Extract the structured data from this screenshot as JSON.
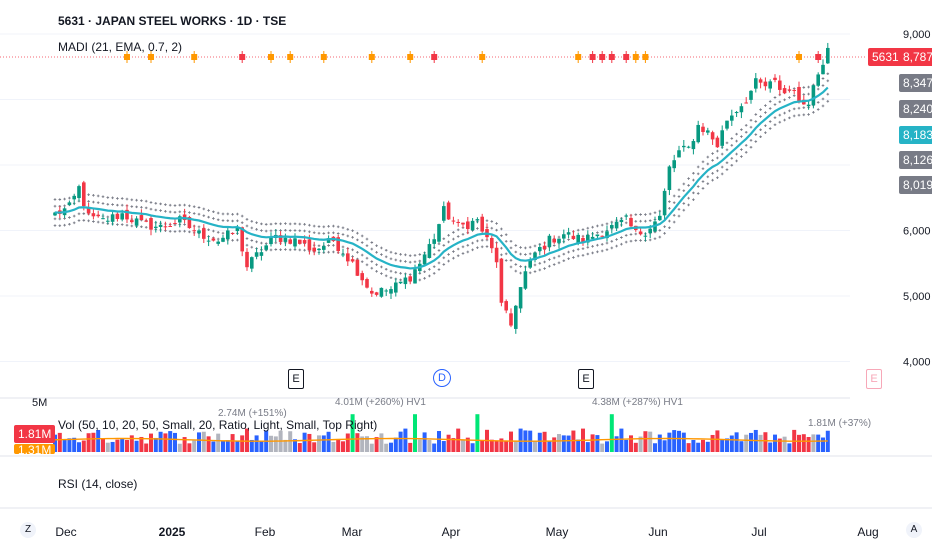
{
  "header": {
    "title": "5631 · JAPAN STEEL WORKS · 1D · TSE",
    "indicator_madi": "MADI (21, EMA, 0.7, 2)",
    "indicator_vol": "Vol (50, 10, 20, 50, Small, 20, Ratio, Light, Small, Top Right)",
    "indicator_rsi": "RSI (14, close)"
  },
  "price_tags": {
    "symbol": "5631",
    "last": "8,787",
    "upper_band2": "8,347",
    "upper_band1": "8,240",
    "ema": "8,183",
    "lower_band1": "8,126",
    "lower_band2": "8,019"
  },
  "volume_tags": {
    "top_axis": "5M",
    "current": "1.81M",
    "avg_partial": "1.31M",
    "ann1": "2.74M (+151%)",
    "ann2": "4.01M (+260%) HV1",
    "ann3": "4.38M (+287%) HV1",
    "ann_last": "1.81M (+37%)"
  },
  "events": {
    "e1": "E",
    "d": "D",
    "e2": "E",
    "e3": "E"
  },
  "corner": {
    "left": "Z",
    "right": "A"
  },
  "colors": {
    "up": "#089981",
    "down": "#f23645",
    "ema": "#26b3c6",
    "band": "#787b86",
    "vol_up": "#2962ff",
    "vol_down": "#f23645",
    "vol_hv": "#00e676",
    "vol_avg": "#ff9800",
    "grid": "#f0f3fa"
  },
  "chart_data": {
    "type": "candlestick",
    "symbol": "5631",
    "timeframe": "1D",
    "y_axis": {
      "ticks": [
        4000,
        5000,
        6000,
        7000,
        8000,
        9000
      ],
      "tick_labels": [
        "4,000",
        "5,000",
        "6,000",
        "",
        "",
        "9,000"
      ],
      "range": [
        3700,
        9100
      ]
    },
    "x_axis": {
      "tick_labels": [
        "Dec",
        "2025",
        "Feb",
        "Mar",
        "Apr",
        "May",
        "Jun",
        "Jul",
        "Aug"
      ]
    },
    "close_anchors": [
      [
        0,
        6250
      ],
      [
        3,
        6350
      ],
      [
        5,
        6650
      ],
      [
        7,
        6200
      ],
      [
        10,
        6150
      ],
      [
        14,
        6250
      ],
      [
        18,
        6100
      ],
      [
        22,
        6050
      ],
      [
        26,
        6150
      ],
      [
        30,
        5950
      ],
      [
        34,
        5850
      ],
      [
        38,
        6000
      ],
      [
        40,
        5450
      ],
      [
        43,
        5700
      ],
      [
        46,
        5900
      ],
      [
        50,
        5850
      ],
      [
        54,
        5700
      ],
      [
        58,
        5850
      ],
      [
        62,
        5500
      ],
      [
        66,
        5050
      ],
      [
        70,
        5100
      ],
      [
        74,
        5300
      ],
      [
        76,
        5500
      ],
      [
        79,
        5900
      ],
      [
        81,
        6300
      ],
      [
        84,
        6050
      ],
      [
        88,
        6150
      ],
      [
        90,
        5850
      ],
      [
        92,
        5550
      ],
      [
        93,
        4850
      ],
      [
        95,
        4550
      ],
      [
        96,
        4900
      ],
      [
        98,
        5350
      ],
      [
        100,
        5650
      ],
      [
        103,
        5850
      ],
      [
        106,
        5950
      ],
      [
        110,
        5850
      ],
      [
        113,
        5950
      ],
      [
        116,
        6050
      ],
      [
        119,
        6150
      ],
      [
        121,
        5950
      ],
      [
        123,
        6000
      ],
      [
        126,
        6200
      ],
      [
        128,
        6950
      ],
      [
        130,
        7200
      ],
      [
        132,
        7250
      ],
      [
        134,
        7600
      ],
      [
        136,
        7500
      ],
      [
        138,
        7300
      ],
      [
        140,
        7700
      ],
      [
        142,
        7850
      ],
      [
        144,
        8000
      ],
      [
        146,
        8250
      ],
      [
        148,
        8200
      ],
      [
        150,
        8250
      ],
      [
        152,
        8100
      ],
      [
        154,
        8200
      ],
      [
        155,
        7900
      ],
      [
        157,
        8000
      ],
      [
        159,
        8400
      ],
      [
        161,
        8787
      ]
    ],
    "ema_last": 8183,
    "bands_last": [
      8019,
      8126,
      8240,
      8347
    ],
    "last_close": 8787,
    "volume_last": "1.81M",
    "rsi_length": 14
  }
}
